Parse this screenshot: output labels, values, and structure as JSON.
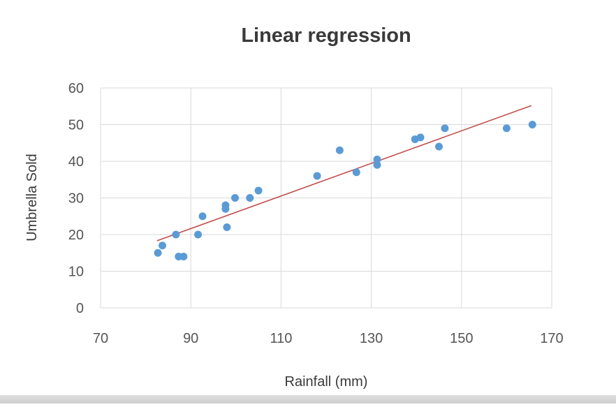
{
  "chart_data": {
    "type": "scatter",
    "title": "Linear regression",
    "xlabel": "Rainfall (mm)",
    "ylabel": "Umbrella Sold",
    "xlim": [
      70,
      170
    ],
    "ylim": [
      0,
      60
    ],
    "x_ticks": [
      "70",
      "90",
      "110",
      "130",
      "150",
      "170"
    ],
    "y_ticks": [
      "0",
      "10",
      "20",
      "30",
      "40",
      "50",
      "60"
    ],
    "grid": true,
    "series": [
      {
        "color": "#5b9bd5",
        "points": [
          {
            "x": 82.7,
            "y": 15
          },
          {
            "x": 83.7,
            "y": 17
          },
          {
            "x": 86.7,
            "y": 20
          },
          {
            "x": 87.3,
            "y": 14
          },
          {
            "x": 88.4,
            "y": 14
          },
          {
            "x": 91.6,
            "y": 20
          },
          {
            "x": 92.6,
            "y": 25
          },
          {
            "x": 97.7,
            "y": 28
          },
          {
            "x": 97.7,
            "y": 27
          },
          {
            "x": 98.0,
            "y": 22
          },
          {
            "x": 99.8,
            "y": 30
          },
          {
            "x": 103.1,
            "y": 30
          },
          {
            "x": 105.0,
            "y": 32
          },
          {
            "x": 118.0,
            "y": 36
          },
          {
            "x": 123.0,
            "y": 43
          },
          {
            "x": 126.7,
            "y": 37
          },
          {
            "x": 131.3,
            "y": 40.5
          },
          {
            "x": 131.3,
            "y": 39
          },
          {
            "x": 139.7,
            "y": 46
          },
          {
            "x": 140.9,
            "y": 46.5
          },
          {
            "x": 145.0,
            "y": 44
          },
          {
            "x": 146.3,
            "y": 49
          },
          {
            "x": 160.0,
            "y": 49
          },
          {
            "x": 165.7,
            "y": 50
          }
        ]
      }
    ],
    "trendline": {
      "color": "#c0504d",
      "x": [
        82.5,
        165.5
      ],
      "y": [
        18.3,
        55.2
      ]
    }
  }
}
